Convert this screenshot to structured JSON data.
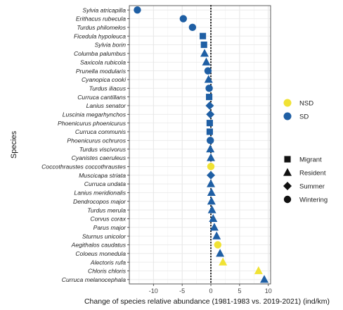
{
  "chart_data": {
    "type": "scatter",
    "xlabel": "Change of species relative abundance (1981-1983 vs. 2019-2021) (ind/km)",
    "ylabel": "Species",
    "xlim": [
      -14.2,
      10.4
    ],
    "xticks": [
      -10,
      -5,
      0,
      5,
      10
    ],
    "grid": true,
    "reference_line": {
      "x": 0,
      "style": "dotted"
    },
    "legend_color": {
      "placement": "right",
      "entries": [
        {
          "label": "NSD",
          "color": "#f0e234"
        },
        {
          "label": "SD",
          "color": "#1f5fa4"
        }
      ]
    },
    "legend_shape": {
      "placement": "right",
      "entries": [
        {
          "label": "Migrant",
          "shape": "square"
        },
        {
          "label": "Resident",
          "shape": "triangle"
        },
        {
          "label": "Summer",
          "shape": "diamond"
        },
        {
          "label": "Wintering",
          "shape": "circle"
        }
      ]
    },
    "points": [
      {
        "species": "Sylvia atricapilla",
        "value": -12.8,
        "shape": "circle",
        "group": "SD"
      },
      {
        "species": "Erithacus rubecula",
        "value": -4.8,
        "shape": "circle",
        "group": "SD"
      },
      {
        "species": "Turdus philomelos",
        "value": -3.2,
        "shape": "circle",
        "group": "SD"
      },
      {
        "species": "Ficedula hypoleuca",
        "value": -1.4,
        "shape": "square",
        "group": "SD"
      },
      {
        "species": "Sylvia borin",
        "value": -1.2,
        "shape": "square",
        "group": "SD"
      },
      {
        "species": "Columba palumbus",
        "value": -1.1,
        "shape": "triangle",
        "group": "SD"
      },
      {
        "species": "Saxicola rubicola",
        "value": -0.8,
        "shape": "triangle",
        "group": "SD"
      },
      {
        "species": "Prunella modularis",
        "value": -0.5,
        "shape": "circle",
        "group": "SD"
      },
      {
        "species": "Cyanopica cooki",
        "value": -0.4,
        "shape": "triangle",
        "group": "SD"
      },
      {
        "species": "Turdus iliacus",
        "value": -0.3,
        "shape": "circle",
        "group": "SD"
      },
      {
        "species": "Curruca cantillans",
        "value": -0.3,
        "shape": "square",
        "group": "SD"
      },
      {
        "species": "Lanius senator",
        "value": -0.2,
        "shape": "diamond",
        "group": "SD"
      },
      {
        "species": "Luscinia megarhynchos",
        "value": -0.1,
        "shape": "diamond",
        "group": "SD"
      },
      {
        "species": "Phoenicurus phoenicurus",
        "value": -0.2,
        "shape": "square",
        "group": "SD"
      },
      {
        "species": "Curruca communis",
        "value": -0.2,
        "shape": "square",
        "group": "SD"
      },
      {
        "species": "Phoenicurus ochruros",
        "value": -0.1,
        "shape": "circle",
        "group": "SD"
      },
      {
        "species": "Turdus viscivorus",
        "value": -0.1,
        "shape": "triangle",
        "group": "SD"
      },
      {
        "species": "Cyanistes caeruleus",
        "value": 0.0,
        "shape": "triangle",
        "group": "SD"
      },
      {
        "species": "Coccothraustes coccothraustes",
        "value": 0.0,
        "shape": "circle",
        "group": "NSD"
      },
      {
        "species": "Muscicapa striata",
        "value": 0.0,
        "shape": "diamond",
        "group": "SD"
      },
      {
        "species": "Curruca undata",
        "value": 0.0,
        "shape": "triangle",
        "group": "SD"
      },
      {
        "species": "Lanius meridionalis",
        "value": 0.1,
        "shape": "triangle",
        "group": "SD"
      },
      {
        "species": "Dendrocopos major",
        "value": 0.1,
        "shape": "triangle",
        "group": "SD"
      },
      {
        "species": "Turdus merula",
        "value": 0.2,
        "shape": "triangle",
        "group": "SD"
      },
      {
        "species": "Corvus corax",
        "value": 0.4,
        "shape": "triangle",
        "group": "SD"
      },
      {
        "species": "Parus major",
        "value": 0.6,
        "shape": "triangle",
        "group": "SD"
      },
      {
        "species": "Sturnus unicolor",
        "value": 1.0,
        "shape": "triangle",
        "group": "SD"
      },
      {
        "species": "Aegithalos caudatus",
        "value": 1.2,
        "shape": "circle",
        "group": "NSD"
      },
      {
        "species": "Coloeus monedula",
        "value": 1.6,
        "shape": "triangle",
        "group": "SD"
      },
      {
        "species": "Alectoris rufa",
        "value": 2.1,
        "shape": "triangle",
        "group": "NSD"
      },
      {
        "species": "Chloris chloris",
        "value": 8.3,
        "shape": "triangle",
        "group": "NSD"
      },
      {
        "species": "Curruca melanocephala",
        "value": 9.3,
        "shape": "triangle",
        "group": "SD"
      }
    ]
  }
}
